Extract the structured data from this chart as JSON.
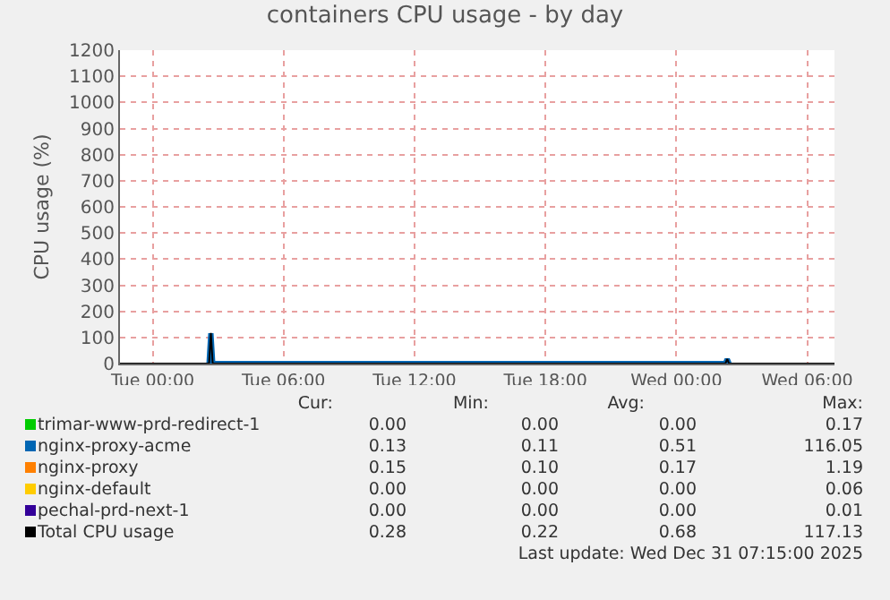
{
  "chart_data": {
    "type": "line",
    "title": "containers CPU usage - by day",
    "ylabel": "CPU usage (%)",
    "xlim": [
      "2025-12-29T22:30",
      "2025-12-31T07:15"
    ],
    "xticks": [
      {
        "value": "2025-12-30T00:00",
        "label": "Tue 00:00"
      },
      {
        "value": "2025-12-30T06:00",
        "label": "Tue 06:00"
      },
      {
        "value": "2025-12-30T12:00",
        "label": "Tue 12:00"
      },
      {
        "value": "2025-12-30T18:00",
        "label": "Tue 18:00"
      },
      {
        "value": "2025-12-31T00:00",
        "label": "Wed 00:00"
      },
      {
        "value": "2025-12-31T06:00",
        "label": "Wed 06:00"
      }
    ],
    "ylim": [
      0,
      1200
    ],
    "yticks": [
      0,
      100,
      200,
      300,
      400,
      500,
      600,
      700,
      800,
      900,
      1000,
      1100,
      1200
    ],
    "grid": true,
    "legend": "bottom",
    "series": [
      {
        "name": "trimar-www-prd-redirect-1",
        "color": "#00cc00"
      },
      {
        "name": "nginx-proxy-acme",
        "color": "#0066b3",
        "x": [
          "2025-12-30T02:35",
          "2025-12-30T02:40",
          "2025-12-30T02:45",
          "2025-12-31T02:15",
          "2025-12-31T02:20",
          "2025-12-31T02:25"
        ],
        "values": [
          0,
          116,
          0,
          0,
          17,
          0
        ]
      },
      {
        "name": "nginx-proxy",
        "color": "#ff8000"
      },
      {
        "name": "nginx-default",
        "color": "#ffcc00"
      },
      {
        "name": "pechal-prd-next-1",
        "color": "#330099"
      },
      {
        "name": "Total CPU usage",
        "color": "#000000",
        "x": [
          "2025-12-29T22:30",
          "2025-12-30T02:35",
          "2025-12-30T02:40",
          "2025-12-30T02:45",
          "2025-12-31T02:15",
          "2025-12-31T02:20",
          "2025-12-31T02:25",
          "2025-12-31T07:15"
        ],
        "values": [
          0,
          0,
          117,
          0,
          0,
          18,
          0,
          0
        ]
      }
    ],
    "annotations": [
      "Cur:",
      "Min:",
      "Avg:",
      "Max:",
      "0.00",
      "0.00",
      "0.00",
      "0.17",
      "0.13",
      "0.11",
      "0.51",
      "116.05",
      "0.15",
      "0.10",
      "0.17",
      "1.19",
      "0.00",
      "0.00",
      "0.00",
      "0.06",
      "0.00",
      "0.00",
      "0.00",
      "0.01",
      "0.28",
      "0.22",
      "0.68",
      "117.13",
      "Last update: Wed Dec 31 07:15:00 2025"
    ]
  }
}
